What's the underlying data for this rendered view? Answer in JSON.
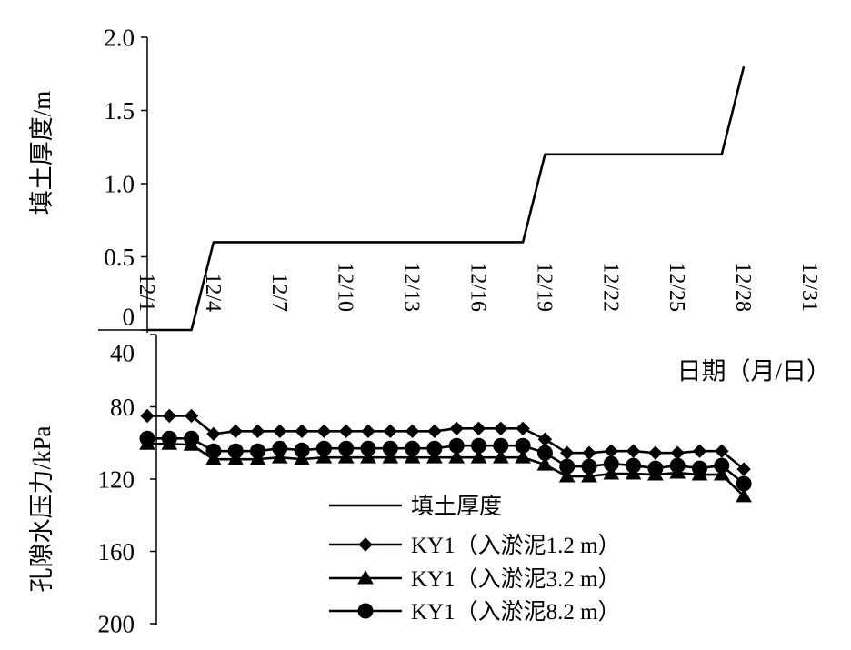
{
  "chart_data": [
    {
      "type": "line",
      "xlabel": "",
      "ylabel": "填土厚度/m",
      "ylim": [
        0,
        2.0
      ],
      "yticks": [
        "2.0",
        "1.5",
        "1.0",
        "0.5",
        "0"
      ],
      "grid": false,
      "series": [
        {
          "name": "填土厚度",
          "marker": "none",
          "color": "#000000",
          "x": [
            "12/1",
            "12/3",
            "12/4",
            "12/18",
            "12/19",
            "12/27",
            "12/28"
          ],
          "values": [
            0,
            0,
            0.6,
            0.6,
            1.2,
            1.2,
            1.8
          ]
        }
      ]
    },
    {
      "type": "line",
      "xlabel": "日期（月/日）",
      "ylabel": "孔隙水压力/kPa",
      "ylim": [
        40,
        200
      ],
      "y_inverted": true,
      "yticks": [
        "40",
        "80",
        "120",
        "160",
        "200"
      ],
      "xticks": [
        "12/1",
        "12/4",
        "12/7",
        "12/10",
        "12/13",
        "12/16",
        "12/19",
        "12/22",
        "12/25",
        "12/28",
        "12/31"
      ],
      "grid": false,
      "x": [
        "12/1",
        "12/2",
        "12/3",
        "12/4",
        "12/5",
        "12/6",
        "12/7",
        "12/8",
        "12/9",
        "12/10",
        "12/11",
        "12/12",
        "12/13",
        "12/14",
        "12/15",
        "12/16",
        "12/17",
        "12/18",
        "12/19",
        "12/20",
        "12/21",
        "12/22",
        "12/23",
        "12/24",
        "12/25",
        "12/26",
        "12/27",
        "12/28"
      ],
      "series": [
        {
          "name": "KY1（入淤泥1.2 m）",
          "marker": "diamond",
          "color": "#000000",
          "values": [
            85,
            85,
            85,
            95,
            93.5,
            93.5,
            93.5,
            93.5,
            93.5,
            93.5,
            93.5,
            93.5,
            93.5,
            93.5,
            92,
            92,
            92,
            92,
            98,
            105.5,
            105.5,
            104.5,
            104.5,
            105.5,
            105.5,
            104.5,
            104.5,
            114.5
          ]
        },
        {
          "name": "KY1（入淤泥3.2 m）",
          "marker": "triangle",
          "color": "#000000",
          "values": [
            100.5,
            100.5,
            101,
            109,
            109,
            109,
            108,
            109,
            108,
            108,
            108,
            108,
            108,
            108,
            108,
            108,
            108,
            108,
            112,
            118.5,
            118.5,
            117,
            117,
            117.5,
            116.5,
            117.5,
            117.5,
            129.5
          ]
        },
        {
          "name": "KY1（入淤泥8.2 m）",
          "marker": "circle",
          "color": "#000000",
          "values": [
            97.5,
            97.5,
            97.5,
            104.5,
            104.5,
            104.5,
            103,
            104,
            103,
            103,
            103,
            103,
            103,
            103,
            101.5,
            101.5,
            101.5,
            101.5,
            105.5,
            113,
            113,
            111.5,
            112.5,
            114,
            112.5,
            114,
            112.5,
            122.5
          ]
        }
      ]
    }
  ],
  "legend": {
    "placement": "bottom-center"
  }
}
